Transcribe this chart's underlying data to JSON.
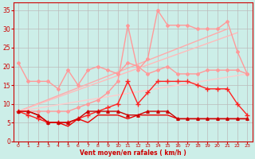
{
  "xlabel": "Vent moyen/en rafales ( km/h )",
  "background_color": "#cceee8",
  "grid_color": "#bbbbbb",
  "xlim": [
    -0.5,
    23.5
  ],
  "ylim": [
    0,
    37
  ],
  "xticks": [
    0,
    1,
    2,
    3,
    4,
    5,
    6,
    7,
    8,
    9,
    10,
    11,
    12,
    13,
    14,
    15,
    16,
    17,
    18,
    19,
    20,
    21,
    22,
    23
  ],
  "yticks": [
    0,
    5,
    10,
    15,
    20,
    25,
    30,
    35
  ],
  "lines": [
    {
      "x": [
        0,
        21
      ],
      "y": [
        8,
        30
      ],
      "color": "#ffaaaa",
      "lw": 1.0,
      "marker": null,
      "ms": 0
    },
    {
      "x": [
        0,
        22
      ],
      "y": [
        8,
        29
      ],
      "color": "#ffbbbb",
      "lw": 1.0,
      "marker": null,
      "ms": 0
    },
    {
      "x": [
        0,
        23
      ],
      "y": [
        8,
        18
      ],
      "color": "#ffcccc",
      "lw": 1.0,
      "marker": null,
      "ms": 0
    },
    {
      "x": [
        0,
        1,
        2,
        3,
        4,
        5,
        6,
        7,
        8,
        9,
        10,
        11,
        12,
        13,
        14,
        15,
        16,
        17,
        18,
        19,
        20,
        21,
        22,
        23
      ],
      "y": [
        21,
        16,
        16,
        16,
        14,
        19,
        15,
        19,
        20,
        19,
        18,
        21,
        20,
        18,
        19,
        20,
        18,
        18,
        18,
        19,
        19,
        19,
        19,
        18
      ],
      "color": "#ff9999",
      "lw": 1.0,
      "marker": "D",
      "ms": 2.0
    },
    {
      "x": [
        0,
        1,
        2,
        3,
        4,
        5,
        6,
        7,
        8,
        9,
        10,
        11,
        12,
        13,
        14,
        15,
        16,
        17,
        18,
        19,
        20,
        21,
        22,
        23
      ],
      "y": [
        8,
        8,
        8,
        8,
        8,
        8,
        9,
        10,
        11,
        13,
        16,
        31,
        19,
        22,
        35,
        31,
        31,
        31,
        30,
        30,
        30,
        32,
        24,
        18
      ],
      "color": "#ff9999",
      "lw": 1.0,
      "marker": "D",
      "ms": 2.0
    },
    {
      "x": [
        0,
        1,
        2,
        3,
        4,
        5,
        6,
        7,
        8,
        9,
        10,
        11,
        12,
        13,
        14,
        15,
        16,
        17,
        18,
        19,
        20,
        21,
        22,
        23
      ],
      "y": [
        8,
        7,
        6,
        5,
        5,
        5,
        6,
        7,
        8,
        9,
        10,
        16,
        10,
        13,
        16,
        16,
        16,
        16,
        15,
        14,
        14,
        14,
        10,
        7
      ],
      "color": "#ff2222",
      "lw": 1.0,
      "marker": "+",
      "ms": 4
    },
    {
      "x": [
        0,
        1,
        2,
        3,
        4,
        5,
        6,
        7,
        8,
        9,
        10,
        11,
        12,
        13,
        14,
        15,
        16,
        17,
        18,
        19,
        20,
        21,
        22,
        23
      ],
      "y": [
        8,
        8,
        7,
        5,
        5,
        5,
        6,
        8,
        8,
        8,
        8,
        7,
        7,
        8,
        8,
        8,
        6,
        6,
        6,
        6,
        6,
        6,
        6,
        6
      ],
      "color": "#cc0000",
      "lw": 1.0,
      "marker": "^",
      "ms": 2.5
    },
    {
      "x": [
        0,
        1,
        2,
        3,
        4,
        5,
        6,
        7,
        8,
        9,
        10,
        11,
        12,
        13,
        14,
        15,
        16,
        17,
        18,
        19,
        20,
        21,
        22,
        23
      ],
      "y": [
        8,
        8,
        7,
        5,
        5,
        4,
        6,
        5,
        7,
        7,
        7,
        6,
        7,
        7,
        7,
        7,
        6,
        6,
        6,
        6,
        6,
        6,
        6,
        6
      ],
      "color": "#ee0000",
      "lw": 1.0,
      "marker": null,
      "ms": 0
    }
  ]
}
